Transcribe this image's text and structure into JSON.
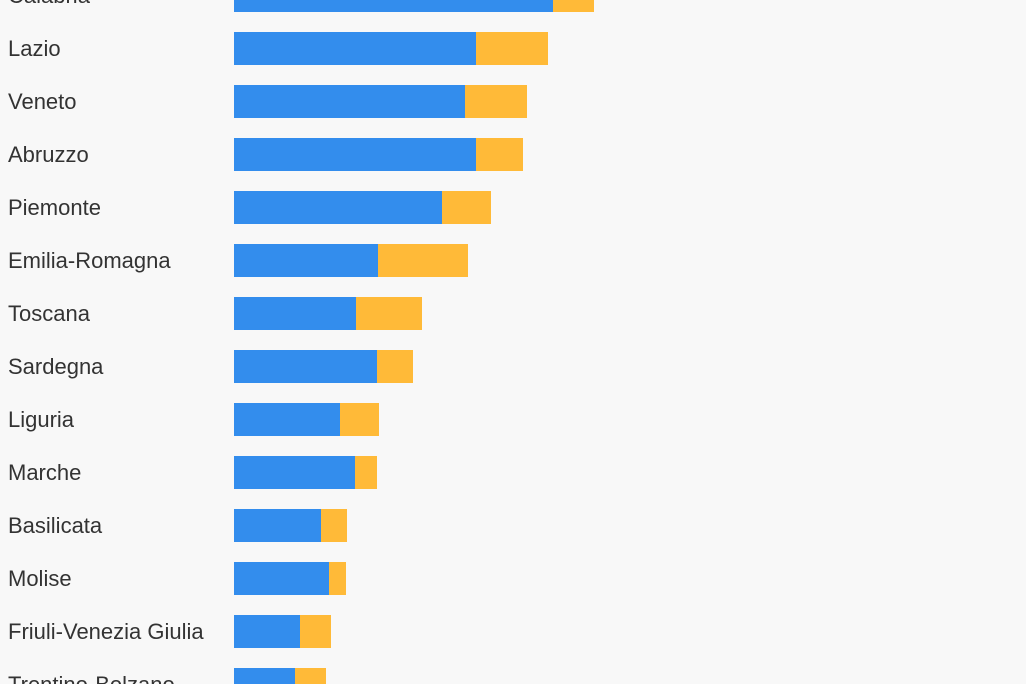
{
  "chart_data": {
    "type": "bar",
    "orientation": "horizontal",
    "stacked": true,
    "categories": [
      "Calabria",
      "Lazio",
      "Veneto",
      "Abruzzo",
      "Piemonte",
      "Emilia-Romagna",
      "Toscana",
      "Sardegna",
      "Liguria",
      "Marche",
      "Basilicata",
      "Molise",
      "Friuli-Venezia Giulia",
      "Trentino-Bolzano"
    ],
    "series": [
      {
        "color": "#338ded",
        "values": [
          319,
          242,
          231,
          242,
          208,
          144,
          122,
          143,
          106,
          121,
          87,
          95,
          66,
          61
        ]
      },
      {
        "color": "#ffba38",
        "values": [
          41,
          72,
          62,
          47,
          49,
          90,
          66,
          36,
          39,
          22,
          26,
          17,
          31,
          31
        ]
      }
    ],
    "xlim": [
      0,
      792
    ],
    "grid": false,
    "legend": "none"
  }
}
